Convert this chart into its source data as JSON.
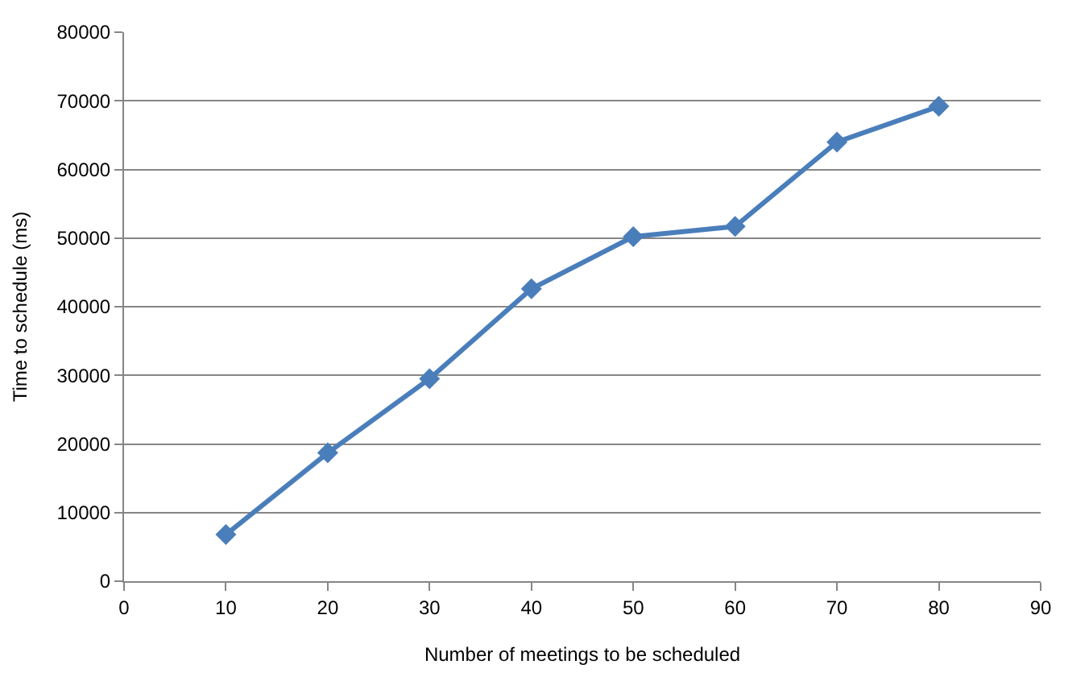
{
  "chart_data": {
    "type": "line",
    "xlabel": "Number of meetings to be scheduled",
    "ylabel": "Time to schedule (ms)",
    "x": [
      10,
      20,
      30,
      40,
      50,
      60,
      70,
      80
    ],
    "series": [
      {
        "color": "#4a7ebb",
        "values": [
          6800,
          18700,
          29500,
          42600,
          50200,
          51700,
          64000,
          69200
        ]
      }
    ],
    "xlim": [
      0,
      90
    ],
    "xticks": [
      0,
      10,
      20,
      30,
      40,
      50,
      60,
      70,
      80,
      90
    ],
    "ylim": [
      0,
      80000
    ],
    "yticks": [
      0,
      10000,
      20000,
      30000,
      40000,
      50000,
      60000,
      70000,
      80000
    ],
    "grid": "y",
    "marker": "diamond",
    "line_style": "solid",
    "legend": false
  }
}
